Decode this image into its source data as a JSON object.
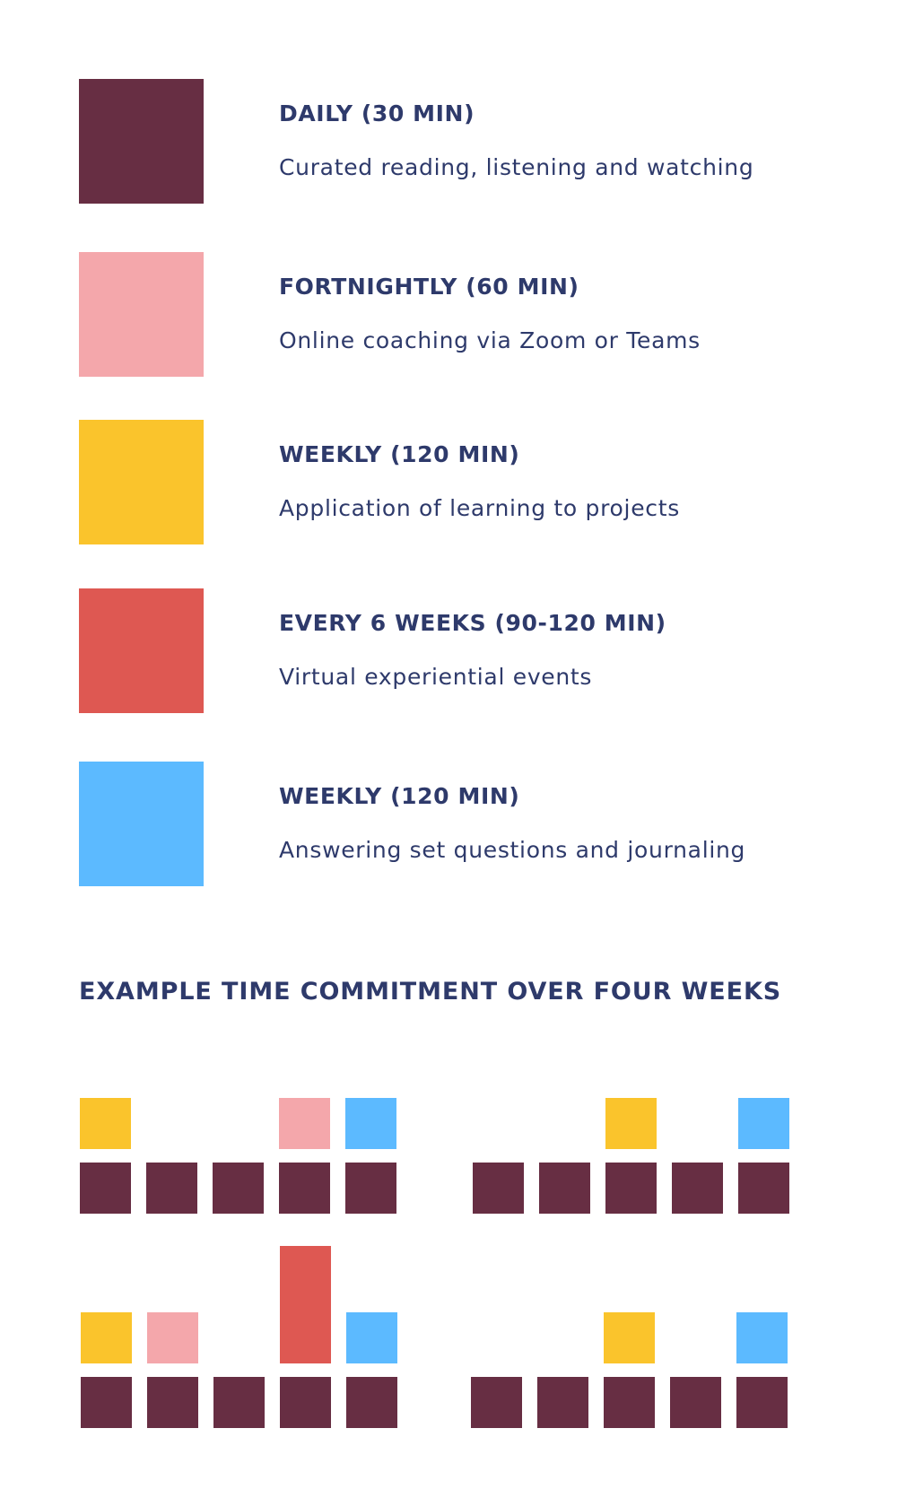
{
  "colors": {
    "daily": "#672e43",
    "fortnightly": "#f4a7ab",
    "weekly_application": "#fac42c",
    "every_6_weeks": "#de5852",
    "weekly_journaling": "#5cbaff"
  },
  "legend": [
    {
      "key": "daily",
      "title": "DAILY (30 MIN)",
      "description": "Curated reading, listening and watching"
    },
    {
      "key": "fortnightly",
      "title": "FORTNIGHTLY (60 MIN)",
      "description": "Online coaching via Zoom or Teams"
    },
    {
      "key": "weekly_application",
      "title": "WEEKLY (120 MIN)",
      "description": "Application of learning to projects"
    },
    {
      "key": "every_6_weeks",
      "title": "EVERY 6 WEEKS (90-120 MIN)",
      "description": "Virtual experiential events"
    },
    {
      "key": "weekly_journaling",
      "title": "WEEKLY (120 MIN)",
      "description": "Answering set questions and journaling"
    }
  ],
  "schedule": {
    "heading": "EXAMPLE TIME COMMITMENT OVER FOUR WEEKS",
    "weeks": [
      {
        "name": "week-1",
        "days": [
          [
            "weekly_application",
            "daily"
          ],
          [
            "daily"
          ],
          [
            "daily"
          ],
          [
            "fortnightly",
            "daily"
          ],
          [
            "weekly_journaling",
            "daily"
          ]
        ]
      },
      {
        "name": "week-2",
        "days": [
          [
            "daily"
          ],
          [
            "daily"
          ],
          [
            "weekly_application",
            "daily"
          ],
          [
            "daily"
          ],
          [
            "weekly_journaling",
            "daily"
          ]
        ]
      },
      {
        "name": "week-3",
        "days": [
          [
            "weekly_application",
            "daily"
          ],
          [
            "fortnightly",
            "daily"
          ],
          [
            "daily"
          ],
          [
            "every_6_weeks",
            "daily"
          ],
          [
            "weekly_journaling",
            "daily"
          ]
        ]
      },
      {
        "name": "week-4",
        "days": [
          [
            "daily"
          ],
          [
            "daily"
          ],
          [
            "weekly_application",
            "daily"
          ],
          [
            "daily"
          ],
          [
            "weekly_journaling",
            "daily"
          ]
        ]
      }
    ]
  }
}
